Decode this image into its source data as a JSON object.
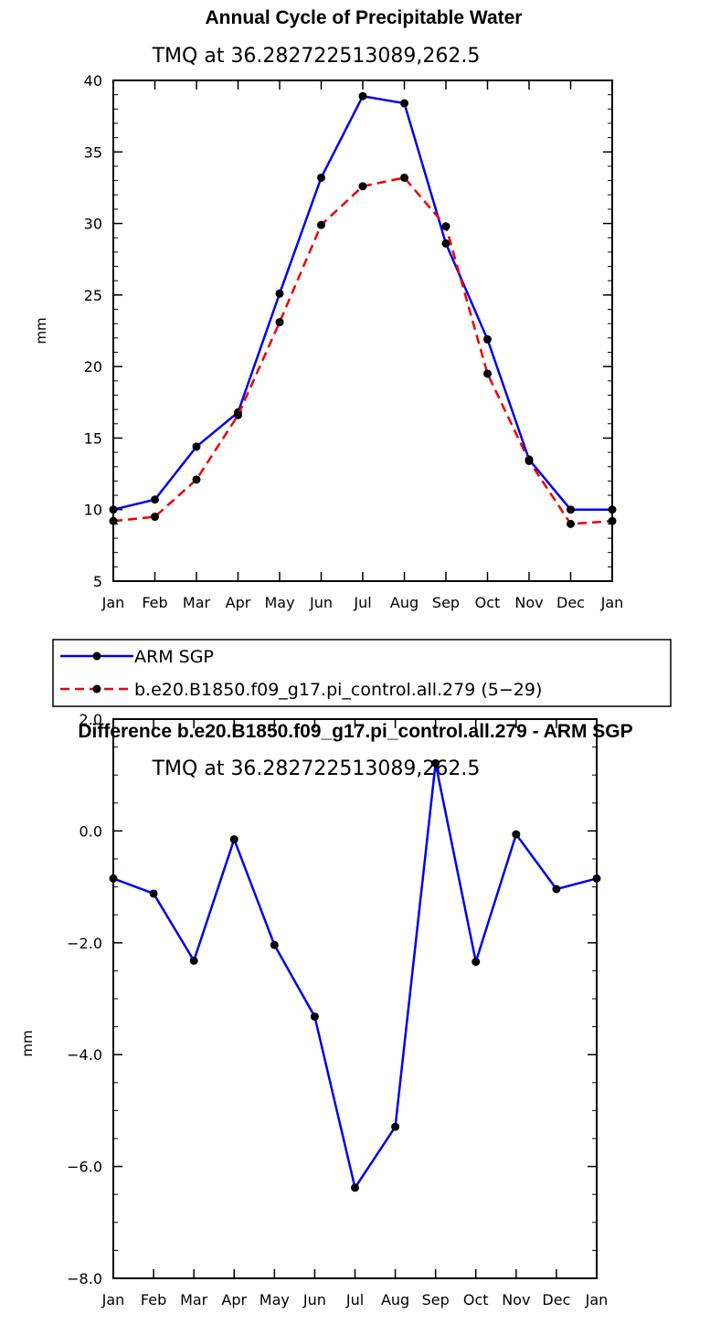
{
  "chart_data": [
    {
      "type": "line",
      "title": "Annual Cycle of Precipitable Water",
      "subtitle": "TMQ at 36.282722513089,262.5",
      "ylabel": "mm",
      "xlabel": "",
      "ylim": [
        5,
        40
      ],
      "yticks": [
        5,
        10,
        15,
        20,
        25,
        30,
        35,
        40
      ],
      "categories": [
        "Jan",
        "Feb",
        "Mar",
        "Apr",
        "May",
        "Jun",
        "Jul",
        "Aug",
        "Sep",
        "Oct",
        "Nov",
        "Dec",
        "Jan"
      ],
      "series": [
        {
          "name": "ARM SGP",
          "color": "#0000ee",
          "dash": "solid",
          "values": [
            10.0,
            10.7,
            14.4,
            16.8,
            25.1,
            33.2,
            38.9,
            38.4,
            28.6,
            21.9,
            13.5,
            10.0,
            10.0
          ]
        },
        {
          "name": "b.e20.B1850.f09_g17.pi_control.all.279 (5−29)",
          "color": "#ee0000",
          "dash": "dashed",
          "values": [
            9.2,
            9.5,
            12.1,
            16.6,
            23.1,
            29.9,
            32.6,
            33.2,
            29.8,
            19.5,
            13.4,
            9.0,
            9.2
          ]
        }
      ],
      "legend": "below"
    },
    {
      "type": "line",
      "title": "Difference b.e20.B1850.f09_g17.pi_control.all.279 - ARM SGP",
      "subtitle": "TMQ at 36.282722513089,262.5",
      "ylabel": "mm",
      "xlabel": "",
      "ylim": [
        -8,
        2
      ],
      "yticks": [
        "-8.0",
        "-6.0",
        "-4.0",
        "-2.0",
        "0.0",
        "2.0"
      ],
      "ytick_values": [
        -8,
        -6,
        -4,
        -2,
        0,
        2
      ],
      "categories": [
        "Jan",
        "Feb",
        "Mar",
        "Apr",
        "May",
        "Jun",
        "Jul",
        "Aug",
        "Sep",
        "Oct",
        "Nov",
        "Dec",
        "Jan"
      ],
      "series": [
        {
          "name": "",
          "color": "#0000ee",
          "dash": "solid",
          "values": [
            -0.85,
            -1.12,
            -2.32,
            -0.15,
            -2.04,
            -3.32,
            -6.38,
            -5.29,
            1.21,
            -2.34,
            -0.06,
            -1.04,
            -0.85
          ]
        }
      ]
    }
  ]
}
